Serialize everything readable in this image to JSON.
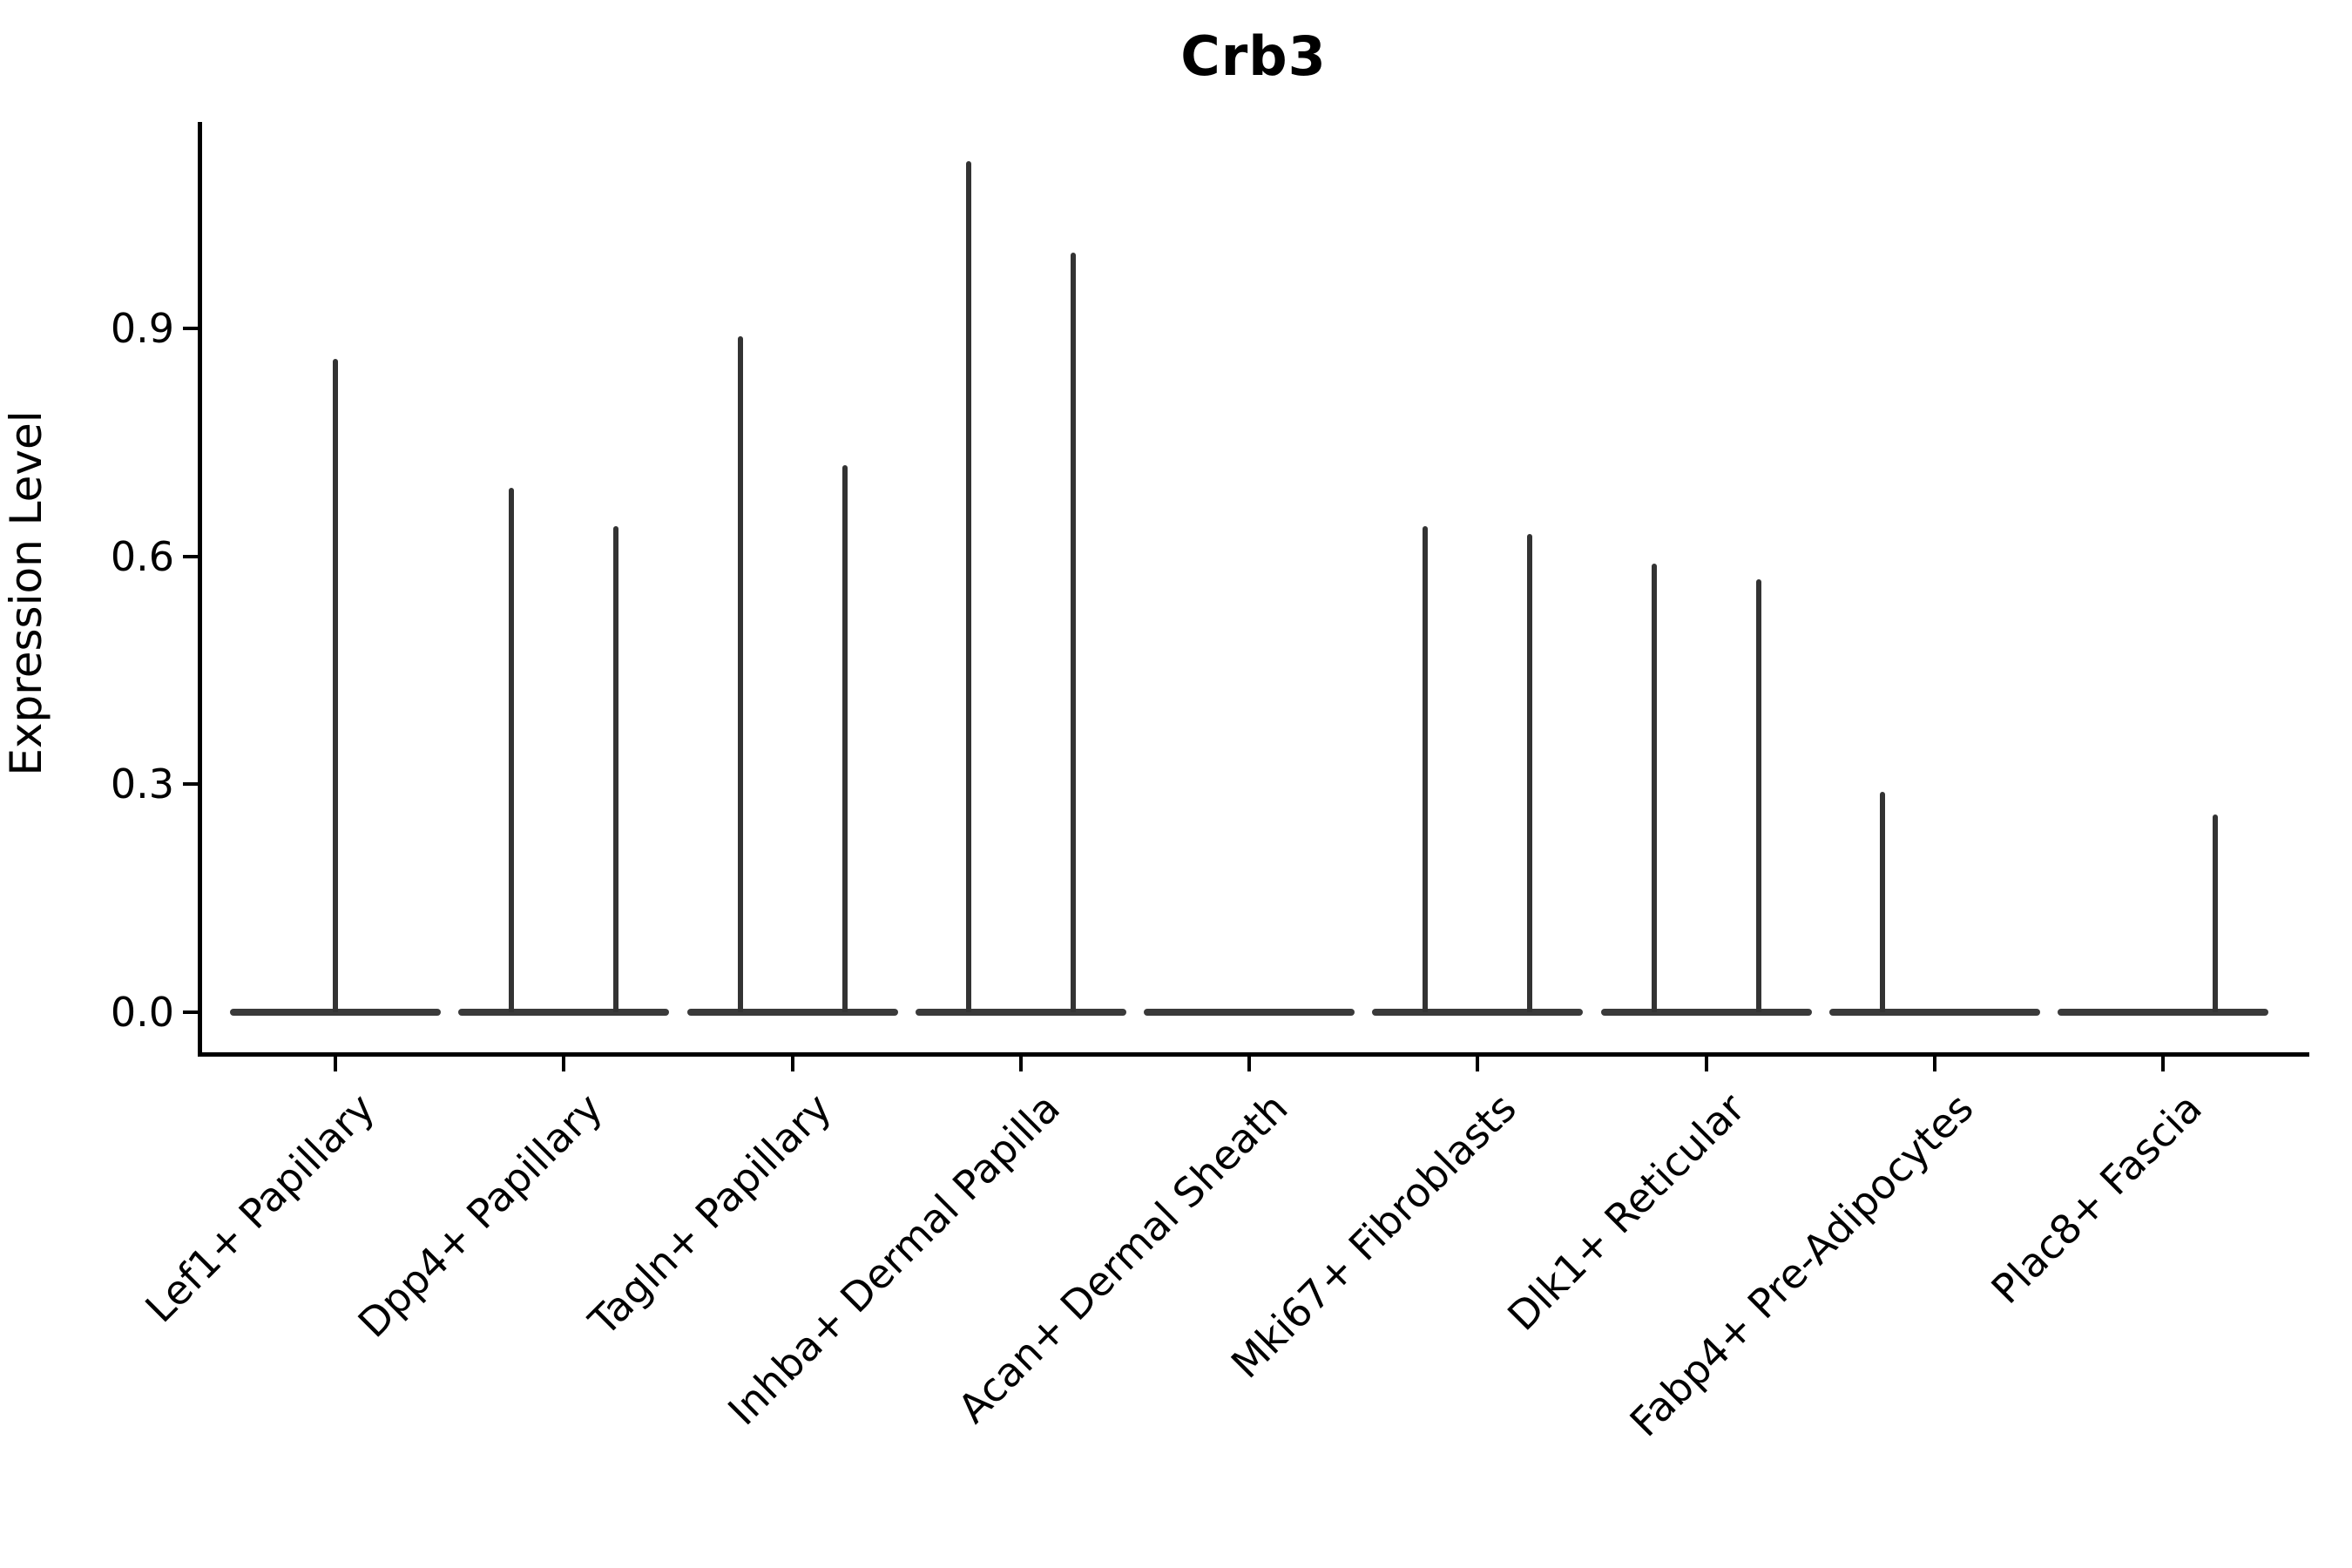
{
  "title": "Crb3",
  "y_axis": {
    "label": "Expression Level",
    "tick_labels": [
      "0.0",
      "0.3",
      "0.6",
      "0.9"
    ]
  },
  "colors": {
    "axis": "#000000",
    "violin": "#333333",
    "text": "#000000",
    "background": "#ffffff"
  },
  "chart_data": {
    "type": "violin",
    "title": "Crb3",
    "xlabel": "",
    "ylabel": "Expression Level",
    "ylim": [
      0,
      1.17
    ],
    "yticks": [
      0.0,
      0.3,
      0.6,
      0.9
    ],
    "grid": false,
    "legend_position": "none",
    "description": "Single-cell expression violin plot; each violin collapses to a flat bar at 0 with thin spikes rising to the maximum expression of expressing cells. Categories with two spikes contain two side-by-side violins (left/right); 'center' denotes a single full-width violin.",
    "baseline_value": 0.0,
    "categories": [
      "Lef1+ Papillary",
      "Dpp4+ Papillary",
      "Tagln+ Papillary",
      "Inhba+ Dermal Papilla",
      "Acan+ Dermal Sheath",
      "Mki67+ Fibroblasts",
      "Dlk1+ Reticular",
      "Fabp4+ Pre-Adipocytes",
      "Plac8+ Fascia"
    ],
    "series": [
      {
        "category": "Lef1+ Papillary",
        "violins": [
          {
            "position": "center",
            "max": 0.86
          }
        ]
      },
      {
        "category": "Dpp4+ Papillary",
        "violins": [
          {
            "position": "left",
            "max": 0.69
          },
          {
            "position": "right",
            "max": 0.64
          }
        ]
      },
      {
        "category": "Tagln+ Papillary",
        "violins": [
          {
            "position": "left",
            "max": 0.89
          },
          {
            "position": "right",
            "max": 0.72
          }
        ]
      },
      {
        "category": "Inhba+ Dermal Papilla",
        "violins": [
          {
            "position": "left",
            "max": 1.12
          },
          {
            "position": "right",
            "max": 1.0
          }
        ]
      },
      {
        "category": "Acan+ Dermal Sheath",
        "violins": []
      },
      {
        "category": "Mki67+ Fibroblasts",
        "violins": [
          {
            "position": "left",
            "max": 0.64
          },
          {
            "position": "right",
            "max": 0.63
          }
        ]
      },
      {
        "category": "Dlk1+ Reticular",
        "violins": [
          {
            "position": "left",
            "max": 0.59
          },
          {
            "position": "right",
            "max": 0.57
          }
        ]
      },
      {
        "category": "Fabp4+ Pre-Adipocytes",
        "violins": [
          {
            "position": "left",
            "max": 0.29
          }
        ]
      },
      {
        "category": "Plac8+ Fascia",
        "violins": [
          {
            "position": "right",
            "max": 0.26
          }
        ]
      }
    ]
  }
}
